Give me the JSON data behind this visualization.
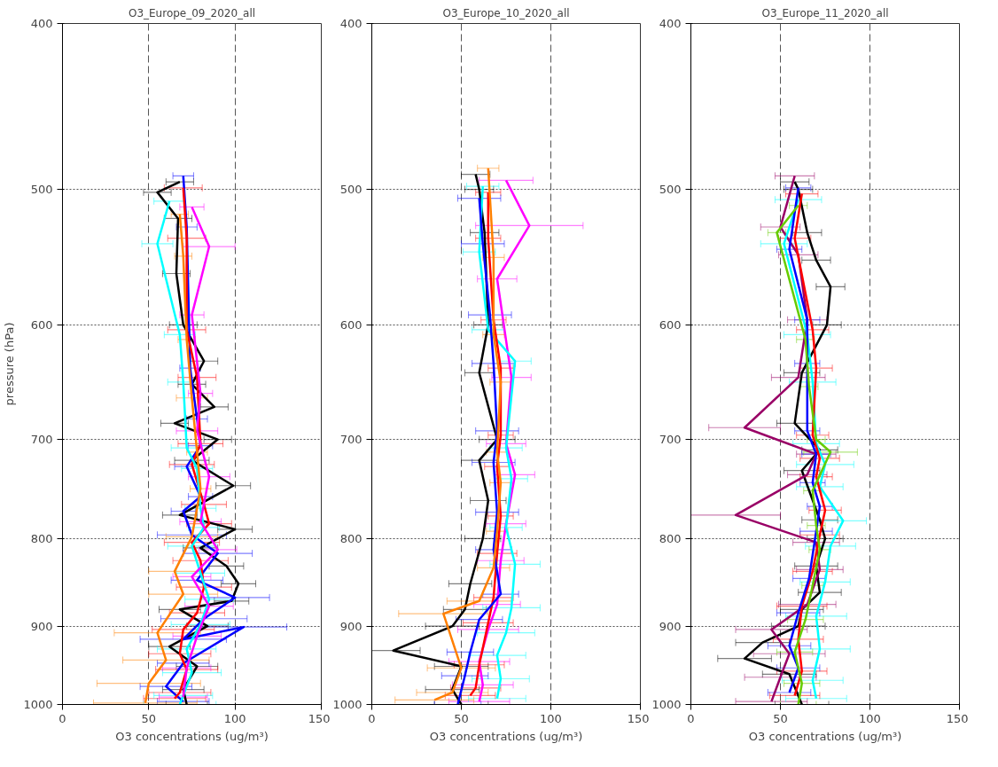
{
  "chart_data": [
    {
      "type": "line",
      "title": "O3_Europe_09_2020_all",
      "xlabel": "O3 concentrations (ug/m³)",
      "ylabel": "pressure (hPa)",
      "log": "y",
      "grid": true,
      "marker": "none",
      "line_style": "solid",
      "xlim": [
        0,
        150
      ],
      "xticks": [
        0,
        50,
        100,
        150
      ],
      "ylim": [
        1000,
        400
      ],
      "yticks": [
        400,
        500,
        600,
        700,
        800,
        900,
        1000
      ],
      "series": [
        {
          "color": "#000000",
          "x": [
            68,
            55,
            67,
            66,
            70,
            82,
            75,
            88,
            65,
            90,
            75,
            99,
            68,
            100,
            80,
            95,
            102,
            98,
            68,
            84,
            62,
            78,
            70,
            72
          ],
          "values": [
            495,
            502,
            520,
            560,
            600,
            630,
            650,
            670,
            685,
            700,
            720,
            745,
            775,
            790,
            810,
            830,
            850,
            870,
            880,
            900,
            925,
            950,
            980,
            1000
          ],
          "xerrors": [
            8,
            8,
            8,
            8,
            8,
            8,
            8,
            8,
            8,
            8,
            10,
            10,
            10,
            10,
            10,
            10,
            10,
            10,
            12,
            12,
            12,
            12,
            12,
            12
          ]
        },
        {
          "color": "#0000ff",
          "x": [
            70,
            72,
            74,
            78,
            80,
            72,
            80,
            70,
            75,
            90,
            78,
            100,
            82,
            70,
            105,
            70,
            60,
            70
          ],
          "values": [
            491,
            526,
            636,
            681,
            706,
            726,
            756,
            771,
            796,
            816,
            846,
            866,
            891,
            916,
            901,
            946,
            976,
            996
          ],
          "xerrors": [
            6,
            6,
            6,
            6,
            7,
            7,
            7,
            7,
            20,
            20,
            15,
            20,
            25,
            25,
            25,
            15,
            15,
            15
          ]
        },
        {
          "color": "#ff0000",
          "x": [
            70,
            72,
            72,
            78,
            80,
            75,
            82,
            85,
            75,
            80,
            82,
            78,
            70,
            68,
            72,
            68,
            65
          ],
          "values": [
            499,
            534,
            604,
            644,
            704,
            724,
            764,
            784,
            804,
            824,
            854,
            884,
            904,
            934,
            954,
            984,
            992
          ],
          "xerrors": [
            11,
            11,
            11,
            11,
            13,
            13,
            13,
            13,
            16,
            16,
            16,
            16,
            18,
            18,
            18,
            18,
            18
          ]
        },
        {
          "color": "#00ffff",
          "x": [
            62,
            55,
            68,
            70,
            72,
            78,
            80,
            82,
            75,
            80,
            85,
            80,
            72,
            75,
            70,
            68
          ],
          "values": [
            508,
            538,
            608,
            648,
            708,
            728,
            768,
            788,
            808,
            838,
            868,
            898,
            928,
            958,
            988,
            1000
          ],
          "xerrors": [
            9,
            9,
            9,
            9,
            9,
            9,
            9,
            9,
            14,
            14,
            14,
            17,
            17,
            17,
            17,
            21
          ]
        },
        {
          "color": "#ff00ff",
          "x": [
            75,
            85,
            75,
            80,
            78,
            85,
            80,
            90,
            75,
            85,
            78,
            72,
            70
          ],
          "values": [
            512,
            540,
            592,
            658,
            692,
            736,
            782,
            812,
            842,
            876,
            912,
            952,
            990
          ],
          "xerrors": [
            7,
            15,
            7,
            7,
            12,
            12,
            12,
            11,
            11,
            14,
            14,
            14,
            14
          ]
        },
        {
          "color": "#ff7f00",
          "x": [
            68,
            70,
            72,
            75,
            78,
            80,
            75,
            65,
            70,
            55,
            60,
            50,
            48
          ],
          "values": [
            517,
            547,
            612,
            662,
            712,
            748,
            798,
            836,
            862,
            908,
            942,
            972,
            998
          ],
          "xerrors": [
            5,
            5,
            5,
            9,
            6,
            6,
            15,
            15,
            20,
            25,
            25,
            30,
            30
          ]
        }
      ]
    },
    {
      "type": "line",
      "title": "O3_Europe_10_2020_all",
      "xlabel": "O3 concentrations (ug/m³)",
      "log": "y",
      "grid": true,
      "marker": "none",
      "line_style": "solid",
      "xlim": [
        0,
        150
      ],
      "xticks": [
        0,
        50,
        100,
        150
      ],
      "ylim": [
        1000,
        400
      ],
      "yticks": [
        400,
        500,
        600,
        700,
        800,
        900,
        1000
      ],
      "series": [
        {
          "color": "#000000",
          "x": [
            58,
            60,
            63,
            65,
            60,
            70,
            60,
            65,
            62,
            55,
            52,
            45,
            12,
            50,
            45,
            50
          ],
          "values": [
            490,
            500,
            530,
            600,
            640,
            700,
            720,
            760,
            800,
            850,
            880,
            900,
            930,
            950,
            980,
            1000
          ],
          "xerrors": [
            8,
            8,
            8,
            8,
            8,
            10,
            10,
            10,
            10,
            12,
            12,
            15,
            15,
            15,
            15,
            15
          ]
        },
        {
          "color": "#ff00ff",
          "x": [
            75,
            88,
            70,
            78,
            75,
            80,
            75,
            72,
            70,
            65,
            60,
            62,
            60
          ],
          "values": [
            494,
            525,
            564,
            644,
            704,
            734,
            784,
            824,
            874,
            904,
            944,
            974,
            996
          ],
          "xerrors": [
            15,
            30,
            11,
            11,
            11,
            11,
            11,
            13,
            13,
            17,
            17,
            17,
            17
          ]
        },
        {
          "color": "#00ffff",
          "x": [
            62,
            60,
            65,
            80,
            75,
            78,
            75,
            80,
            78,
            75,
            70,
            72,
            70
          ],
          "values": [
            498,
            544,
            604,
            630,
            708,
            738,
            788,
            828,
            878,
            908,
            936,
            966,
            992
          ],
          "xerrors": [
            9,
            9,
            9,
            9,
            9,
            9,
            9,
            14,
            16,
            16,
            16,
            16,
            16
          ]
        },
        {
          "color": "#ff0000",
          "x": [
            65,
            65,
            68,
            72,
            72,
            70,
            72,
            70,
            68,
            65,
            60,
            58,
            55
          ],
          "values": [
            502,
            534,
            596,
            636,
            696,
            726,
            776,
            816,
            866,
            896,
            948,
            978,
            988
          ],
          "xerrors": [
            7,
            7,
            7,
            7,
            7,
            7,
            7,
            11,
            11,
            14,
            14,
            14,
            14
          ]
        },
        {
          "color": "#0000ff",
          "x": [
            60,
            62,
            66,
            68,
            70,
            68,
            70,
            68,
            72,
            60,
            55,
            52,
            48
          ],
          "values": [
            506,
            538,
            592,
            632,
            692,
            722,
            772,
            812,
            862,
            892,
            932,
            962,
            1000
          ],
          "xerrors": [
            12,
            12,
            12,
            12,
            12,
            12,
            12,
            10,
            10,
            13,
            13,
            13,
            13
          ]
        },
        {
          "color": "#ff7f00",
          "x": [
            65,
            68,
            68,
            72,
            70,
            72,
            70,
            68,
            60,
            40,
            50,
            45,
            35
          ],
          "values": [
            486,
            548,
            608,
            648,
            712,
            742,
            792,
            832,
            870,
            885,
            952,
            984,
            994
          ],
          "xerrors": [
            6,
            6,
            6,
            6,
            6,
            6,
            6,
            9,
            18,
            25,
            19,
            20,
            22
          ]
        }
      ]
    },
    {
      "type": "line",
      "title": "O3_Europe_11_2020_all",
      "xlabel": "O3 concentrations (ug/m³)",
      "log": "y",
      "grid": true,
      "marker": "none",
      "line_style": "solid",
      "xlim": [
        0,
        150
      ],
      "xticks": [
        0,
        50,
        100,
        150
      ],
      "ylim": [
        1000,
        400
      ],
      "yticks": [
        400,
        500,
        600,
        700,
        800,
        900,
        1000
      ],
      "series": [
        {
          "color": "#000000",
          "x": [
            58,
            60,
            65,
            70,
            78,
            76,
            62,
            58,
            72,
            62,
            72,
            75,
            70,
            72,
            62,
            60,
            40,
            30,
            55,
            62
          ],
          "values": [
            495,
            500,
            530,
            550,
            570,
            600,
            640,
            685,
            710,
            730,
            780,
            800,
            830,
            860,
            880,
            900,
            920,
            940,
            960,
            1000
          ],
          "xerrors": [
            8,
            8,
            8,
            8,
            8,
            8,
            10,
            10,
            10,
            10,
            10,
            10,
            12,
            12,
            12,
            15,
            15,
            15,
            15,
            15
          ]
        },
        {
          "color": "#990066",
          "x": [
            58,
            50,
            60,
            65,
            60,
            30,
            70,
            65,
            25,
            70,
            72,
            65,
            45,
            55,
            50,
            45
          ],
          "values": [
            491,
            526,
            546,
            596,
            644,
            689,
            714,
            734,
            775,
            804,
            834,
            874,
            904,
            934,
            964,
            996
          ],
          "xerrors": [
            11,
            11,
            11,
            11,
            15,
            20,
            11,
            11,
            25,
            13,
            13,
            16,
            20,
            20,
            20,
            20
          ]
        },
        {
          "color": "#00ffff",
          "x": [
            60,
            52,
            65,
            68,
            70,
            75,
            72,
            85,
            78,
            75,
            70,
            72,
            68,
            70
          ],
          "values": [
            507,
            538,
            608,
            648,
            704,
            724,
            746,
            781,
            808,
            848,
            888,
            928,
            968,
            992
          ],
          "xerrors": [
            13,
            13,
            13,
            13,
            13,
            16,
            13,
            13,
            14,
            14,
            17,
            17,
            17,
            17
          ]
        },
        {
          "color": "#ff0000",
          "x": [
            62,
            58,
            68,
            70,
            68,
            72,
            70,
            75,
            72,
            68,
            62,
            60,
            62,
            58
          ],
          "values": [
            503,
            534,
            604,
            636,
            696,
            718,
            736,
            770,
            796,
            836,
            876,
            916,
            956,
            988
          ],
          "xerrors": [
            9,
            9,
            9,
            9,
            9,
            11,
            9,
            9,
            11,
            11,
            14,
            14,
            14,
            14
          ]
        },
        {
          "color": "#0000ff",
          "x": [
            60,
            55,
            65,
            65,
            65,
            70,
            68,
            72,
            70,
            66,
            60,
            55,
            60,
            55
          ],
          "values": [
            499,
            542,
            596,
            632,
            692,
            714,
            742,
            766,
            792,
            844,
            884,
            924,
            952,
            984
          ],
          "xerrors": [
            7,
            7,
            7,
            7,
            7,
            8,
            7,
            7,
            9,
            9,
            12,
            12,
            12,
            12
          ]
        },
        {
          "color": "#66cc00",
          "x": [
            60,
            48,
            64,
            66,
            70,
            78,
            68,
            70,
            72,
            68,
            64,
            58,
            62,
            60
          ],
          "values": [
            511,
            530,
            612,
            652,
            700,
            712,
            750,
            786,
            812,
            852,
            892,
            932,
            972,
            1000
          ],
          "xerrors": [
            5,
            5,
            5,
            5,
            5,
            15,
            5,
            5,
            6,
            6,
            10,
            10,
            10,
            10
          ]
        }
      ]
    }
  ]
}
